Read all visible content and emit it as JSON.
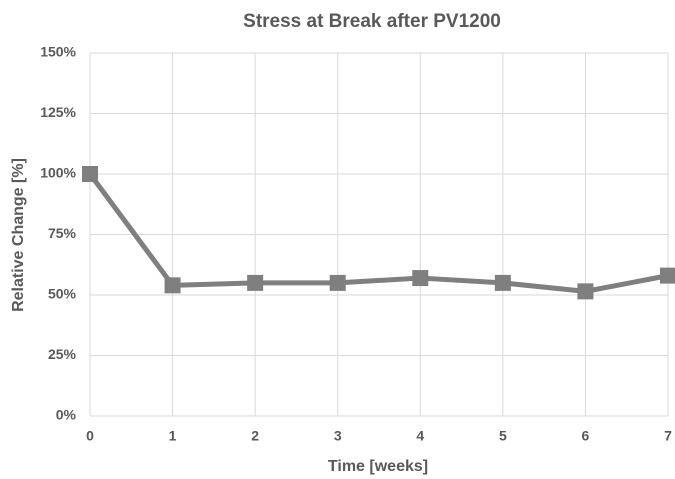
{
  "chart_data": {
    "type": "line",
    "title": "Stress at Break after PV1200",
    "x_label": "Time [weeks]",
    "y_label": "Relative Change [%]",
    "x": [
      0,
      1,
      2,
      3,
      4,
      5,
      6,
      7
    ],
    "series": [
      {
        "name": "Stress at Break",
        "color": "#7f7f7f",
        "values": [
          100,
          54,
          55,
          55,
          57,
          55,
          51.5,
          58
        ]
      }
    ],
    "xlim": [
      0,
      7
    ],
    "xticks": [
      0,
      1,
      2,
      3,
      4,
      5,
      6,
      7
    ],
    "ylim": [
      0,
      150
    ],
    "yticks": [
      {
        "value": 0,
        "label": "0%"
      },
      {
        "value": 25,
        "label": "25%"
      },
      {
        "value": 50,
        "label": "50%"
      },
      {
        "value": 75,
        "label": "75%"
      },
      {
        "value": 100,
        "label": "100%"
      },
      {
        "value": 125,
        "label": "125%"
      },
      {
        "value": 150,
        "label": "150%"
      }
    ],
    "grid": true
  }
}
